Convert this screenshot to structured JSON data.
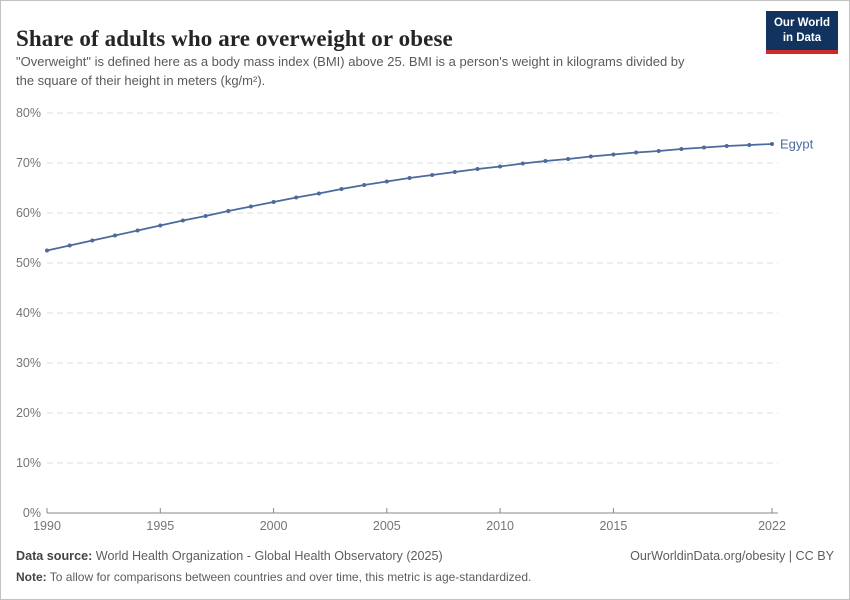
{
  "header": {
    "title": "Share of adults who are overweight or obese",
    "subtitle": "\"Overweight\" is defined here as a body mass index (BMI) above 25. BMI is a person's weight in kilograms divided by the square of their height in meters (kg/m²).",
    "logo": {
      "line1": "Our World",
      "line2": "in Data"
    }
  },
  "chart_data": {
    "type": "line",
    "title": "Share of adults who are overweight or obese",
    "xlabel": "",
    "ylabel": "",
    "xlim": [
      1990,
      2022
    ],
    "ylim": [
      0,
      80
    ],
    "grid": "horizontal-dashed",
    "legend_position": "end-of-line-label",
    "x_ticks": [
      1990,
      1995,
      2000,
      2005,
      2010,
      2015,
      2022
    ],
    "x_tick_labels": [
      "1990",
      "1995",
      "2000",
      "2005",
      "2010",
      "2015",
      "2022"
    ],
    "y_ticks": [
      0,
      10,
      20,
      30,
      40,
      50,
      60,
      70,
      80
    ],
    "y_tick_labels": [
      "0%",
      "10%",
      "20%",
      "30%",
      "40%",
      "50%",
      "60%",
      "70%",
      "80%"
    ],
    "series": [
      {
        "name": "Egypt",
        "color": "#4c6a9c",
        "x": [
          1990,
          1991,
          1992,
          1993,
          1994,
          1995,
          1996,
          1997,
          1998,
          1999,
          2000,
          2001,
          2002,
          2003,
          2004,
          2005,
          2006,
          2007,
          2008,
          2009,
          2010,
          2011,
          2012,
          2013,
          2014,
          2015,
          2016,
          2017,
          2018,
          2019,
          2020,
          2021,
          2022
        ],
        "values": [
          52.5,
          53.5,
          54.5,
          55.5,
          56.5,
          57.5,
          58.5,
          59.4,
          60.4,
          61.3,
          62.2,
          63.1,
          63.9,
          64.8,
          65.6,
          66.3,
          67.0,
          67.6,
          68.2,
          68.8,
          69.3,
          69.9,
          70.4,
          70.8,
          71.3,
          71.7,
          72.1,
          72.4,
          72.8,
          73.1,
          73.4,
          73.6,
          73.8
        ]
      }
    ]
  },
  "footer": {
    "datasource_label": "Data source:",
    "datasource_text": " World Health Organization - Global Health Observatory (2025)",
    "rights": "OurWorldinData.org/obesity | CC BY",
    "note_label": "Note:",
    "note_text": " To allow for comparisons between countries and over time, this metric is age-standardized."
  },
  "colors": {
    "line": "#4c6a9c",
    "grid": "#dedede",
    "axis": "#8a8a8a",
    "logo_bg": "#12335e",
    "logo_red": "#cc2b2b"
  }
}
